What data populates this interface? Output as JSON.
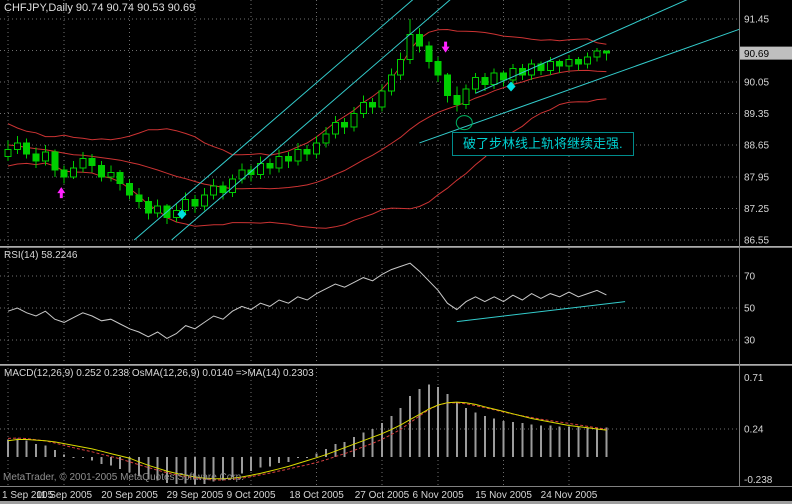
{
  "app": {
    "title": "CHFJPY,Daily 90.74 90.74 90.53 90.69"
  },
  "panes": {
    "main": {
      "price_box_value": "90.69"
    },
    "rsi": {
      "label": "RSI(14) 58.2246"
    },
    "macd": {
      "label": "MACD(12,26,9) 0.252 0.238 OsMA(12,26,9) 0.0140 =>MA(14) 0.2303"
    }
  },
  "annotation": {
    "text": "破了步林线上轨将继续走强."
  },
  "footer": {
    "credit": "MetaTrader, © 2001-2005 MetaQuotes Software Corp."
  },
  "chart_data": {
    "type": "candlestick",
    "symbol": "CHFJPY",
    "timeframe": "Daily",
    "price_axis": {
      "gridlines": [
        91.45,
        90.75,
        90.05,
        89.35,
        88.65,
        87.95,
        87.25,
        86.55
      ],
      "current": 90.69
    },
    "time_axis": {
      "labels": [
        "1 Sep 2005",
        "11 Sep 2005",
        "20 Sep 2005",
        "29 Sep 2005",
        "9 Oct 2005",
        "18 Oct 2005",
        "27 Oct 2005",
        "6 Nov 2005",
        "15 Nov 2005",
        "24 Nov 2005"
      ],
      "indices": [
        0,
        6,
        13,
        20,
        26,
        33,
        40,
        46,
        53,
        60
      ]
    },
    "ohlc": [
      [
        88.4,
        88.75,
        88.3,
        88.55
      ],
      [
        88.55,
        88.85,
        88.45,
        88.7
      ],
      [
        88.7,
        88.8,
        88.35,
        88.45
      ],
      [
        88.45,
        88.6,
        88.15,
        88.3
      ],
      [
        88.3,
        88.65,
        88.2,
        88.5
      ],
      [
        88.5,
        88.55,
        87.95,
        88.1
      ],
      [
        88.1,
        88.2,
        87.8,
        87.95
      ],
      [
        87.95,
        88.3,
        87.9,
        88.15
      ],
      [
        88.15,
        88.5,
        88.05,
        88.35
      ],
      [
        88.35,
        88.45,
        88.05,
        88.2
      ],
      [
        88.2,
        88.3,
        87.85,
        87.95
      ],
      [
        87.95,
        88.2,
        87.85,
        88.05
      ],
      [
        88.05,
        88.1,
        87.65,
        87.8
      ],
      [
        87.8,
        87.9,
        87.45,
        87.55
      ],
      [
        87.55,
        87.7,
        87.25,
        87.4
      ],
      [
        87.4,
        87.5,
        87.0,
        87.15
      ],
      [
        87.15,
        87.45,
        87.05,
        87.3
      ],
      [
        87.3,
        87.35,
        86.9,
        87.05
      ],
      [
        87.05,
        87.35,
        86.95,
        87.2
      ],
      [
        87.2,
        87.6,
        87.1,
        87.45
      ],
      [
        87.45,
        87.55,
        87.15,
        87.3
      ],
      [
        87.3,
        87.7,
        87.2,
        87.55
      ],
      [
        87.55,
        87.9,
        87.45,
        87.75
      ],
      [
        87.75,
        87.85,
        87.45,
        87.6
      ],
      [
        87.6,
        88.0,
        87.5,
        87.9
      ],
      [
        87.9,
        88.25,
        87.8,
        88.1
      ],
      [
        88.1,
        88.2,
        87.85,
        88.0
      ],
      [
        88.0,
        88.4,
        87.9,
        88.25
      ],
      [
        88.25,
        88.35,
        88.0,
        88.15
      ],
      [
        88.15,
        88.55,
        88.05,
        88.4
      ],
      [
        88.4,
        88.5,
        88.15,
        88.3
      ],
      [
        88.3,
        88.7,
        88.2,
        88.55
      ],
      [
        88.55,
        88.65,
        88.3,
        88.45
      ],
      [
        88.45,
        88.85,
        88.35,
        88.7
      ],
      [
        88.7,
        89.05,
        88.6,
        88.9
      ],
      [
        88.9,
        89.3,
        88.8,
        89.15
      ],
      [
        89.15,
        89.25,
        88.9,
        89.05
      ],
      [
        89.05,
        89.5,
        88.95,
        89.35
      ],
      [
        89.35,
        89.75,
        89.25,
        89.6
      ],
      [
        89.6,
        89.7,
        89.35,
        89.5
      ],
      [
        89.5,
        90.0,
        89.4,
        89.85
      ],
      [
        89.85,
        90.35,
        89.75,
        90.2
      ],
      [
        90.2,
        90.7,
        90.1,
        90.55
      ],
      [
        90.55,
        91.45,
        90.45,
        91.1
      ],
      [
        91.1,
        91.25,
        90.7,
        90.85
      ],
      [
        90.85,
        90.95,
        90.35,
        90.5
      ],
      [
        90.5,
        90.6,
        90.05,
        90.2
      ],
      [
        90.2,
        90.25,
        89.6,
        89.75
      ],
      [
        89.75,
        89.95,
        89.4,
        89.55
      ],
      [
        89.55,
        90.0,
        89.45,
        89.9
      ],
      [
        89.9,
        90.25,
        89.8,
        90.15
      ],
      [
        90.15,
        90.25,
        89.85,
        90.0
      ],
      [
        90.0,
        90.35,
        89.9,
        90.25
      ],
      [
        90.25,
        90.3,
        89.95,
        90.1
      ],
      [
        90.1,
        90.45,
        90.0,
        90.35
      ],
      [
        90.35,
        90.45,
        90.1,
        90.2
      ],
      [
        90.2,
        90.55,
        90.1,
        90.45
      ],
      [
        90.45,
        90.5,
        90.2,
        90.3
      ],
      [
        90.3,
        90.6,
        90.2,
        90.5
      ],
      [
        90.5,
        90.55,
        90.25,
        90.4
      ],
      [
        90.4,
        90.65,
        90.3,
        90.55
      ],
      [
        90.55,
        90.6,
        90.3,
        90.45
      ],
      [
        90.45,
        90.7,
        90.35,
        90.6
      ],
      [
        90.6,
        90.8,
        90.5,
        90.74
      ],
      [
        90.74,
        90.74,
        90.53,
        90.69
      ]
    ],
    "bollinger_seed_closes": [
      89.35,
      89.2,
      89.05,
      88.9,
      89.0,
      88.8,
      88.7,
      88.85,
      88.6,
      88.7,
      88.5,
      88.6,
      88.4,
      88.5,
      88.3,
      88.4,
      88.55,
      88.45,
      88.6,
      88.5
    ],
    "indicators": {
      "rsi": {
        "label": "RSI(14)",
        "value": 58.2246,
        "levels": [
          70,
          50,
          30
        ],
        "series": [
          48,
          50,
          47,
          45,
          48,
          43,
          41,
          44,
          47,
          45,
          42,
          43,
          40,
          37,
          35,
          32,
          35,
          31,
          34,
          39,
          37,
          41,
          45,
          43,
          48,
          51,
          49,
          53,
          51,
          55,
          53,
          57,
          55,
          59,
          62,
          65,
          63,
          66,
          69,
          67,
          71,
          74,
          76,
          78,
          73,
          67,
          61,
          53,
          49,
          54,
          57,
          54,
          57,
          54,
          58,
          55,
          59,
          56,
          59,
          57,
          60,
          57,
          59,
          61,
          58.2
        ]
      },
      "macd": {
        "label": "MACD(12,26,9)",
        "main_value": 0.252,
        "signal_value": 0.238,
        "osma_value": 0.014,
        "ma14_value": 0.2303,
        "axis_labels": [
          0.71,
          0.24,
          -0.238
        ],
        "histogram": [
          0.15,
          0.16,
          0.14,
          0.11,
          0.1,
          0.06,
          0.02,
          0.0,
          -0.01,
          -0.03,
          -0.06,
          -0.07,
          -0.1,
          -0.13,
          -0.16,
          -0.19,
          -0.2,
          -0.22,
          -0.23,
          -0.225,
          -0.235,
          -0.23,
          -0.21,
          -0.2,
          -0.17,
          -0.14,
          -0.12,
          -0.09,
          -0.08,
          -0.05,
          -0.04,
          -0.01,
          0.0,
          0.03,
          0.07,
          0.11,
          0.13,
          0.17,
          0.21,
          0.24,
          0.29,
          0.35,
          0.42,
          0.52,
          0.58,
          0.62,
          0.6,
          0.54,
          0.47,
          0.42,
          0.38,
          0.35,
          0.33,
          0.31,
          0.3,
          0.29,
          0.28,
          0.27,
          0.27,
          0.26,
          0.26,
          0.255,
          0.25,
          0.25,
          0.252
        ],
        "signal_series": [
          0.16,
          0.162,
          0.158,
          0.148,
          0.138,
          0.12,
          0.1,
          0.08,
          0.062,
          0.045,
          0.024,
          0.005,
          -0.016,
          -0.04,
          -0.065,
          -0.09,
          -0.112,
          -0.134,
          -0.153,
          -0.168,
          -0.181,
          -0.191,
          -0.195,
          -0.196,
          -0.191,
          -0.181,
          -0.168,
          -0.152,
          -0.137,
          -0.119,
          -0.102,
          -0.083,
          -0.066,
          -0.046,
          -0.023,
          0.004,
          0.029,
          0.057,
          0.088,
          0.118,
          0.152,
          0.192,
          0.237,
          0.294,
          0.351,
          0.405,
          0.444,
          0.463,
          0.464,
          0.455,
          0.44,
          0.422,
          0.404,
          0.385,
          0.368,
          0.352,
          0.338,
          0.324,
          0.312,
          0.3,
          0.288,
          0.275,
          0.262,
          0.25,
          0.238
        ],
        "ma_series": [
          0.14,
          0.15,
          0.15,
          0.145,
          0.14,
          0.13,
          0.115,
          0.1,
          0.085,
          0.07,
          0.05,
          0.03,
          0.01,
          -0.01,
          -0.04,
          -0.07,
          -0.095,
          -0.12,
          -0.14,
          -0.155,
          -0.17,
          -0.18,
          -0.185,
          -0.185,
          -0.18,
          -0.17,
          -0.155,
          -0.14,
          -0.12,
          -0.1,
          -0.08,
          -0.055,
          -0.03,
          -0.005,
          0.02,
          0.05,
          0.08,
          0.11,
          0.14,
          0.17,
          0.2,
          0.235,
          0.275,
          0.32,
          0.365,
          0.41,
          0.445,
          0.465,
          0.47,
          0.465,
          0.45,
          0.43,
          0.41,
          0.39,
          0.37,
          0.35,
          0.33,
          0.315,
          0.3,
          0.285,
          0.27,
          0.26,
          0.25,
          0.24,
          0.2303
        ]
      }
    },
    "objects": {
      "trendlines_main": [
        [
          13.5,
          86.55,
          44,
          92.0
        ],
        [
          17.5,
          86.55,
          48,
          92.0
        ],
        [
          44.0,
          88.7,
          80,
          91.35
        ],
        [
          50.0,
          89.8,
          74,
          92.0
        ]
      ],
      "trendline_rsi": [
        48,
        41.5,
        66,
        54
      ],
      "markers": [
        {
          "type": "arrow-up",
          "index": 5.7,
          "price": 87.72
        },
        {
          "type": "arrow-down",
          "index": 46.8,
          "price": 90.7
        },
        {
          "type": "diamond",
          "index": 18.6,
          "price": 87.12
        },
        {
          "type": "diamond",
          "index": 53.8,
          "price": 89.95
        },
        {
          "type": "ellipse",
          "index": 48.8,
          "price": 89.15
        }
      ]
    }
  },
  "colors": {
    "background": "#000000",
    "grid": "#6F6F6F",
    "candle": "#00CE00",
    "bollinger": "#CC3333",
    "trend": "#33CCCC",
    "rsi_line": "#C9C9C9",
    "histogram": "#9C9C9C",
    "signal": "#D84040",
    "ma": "#DADA00",
    "marker": "#FF22FF",
    "diamond": "#00E0E0",
    "ellipse": "#00B060",
    "axis_text": "#D6D6D6",
    "price_box_bg": "#BFBFBF",
    "separator": "#808080",
    "annotation_text": "#00D0D0",
    "annotation_border": "#008C8C"
  }
}
